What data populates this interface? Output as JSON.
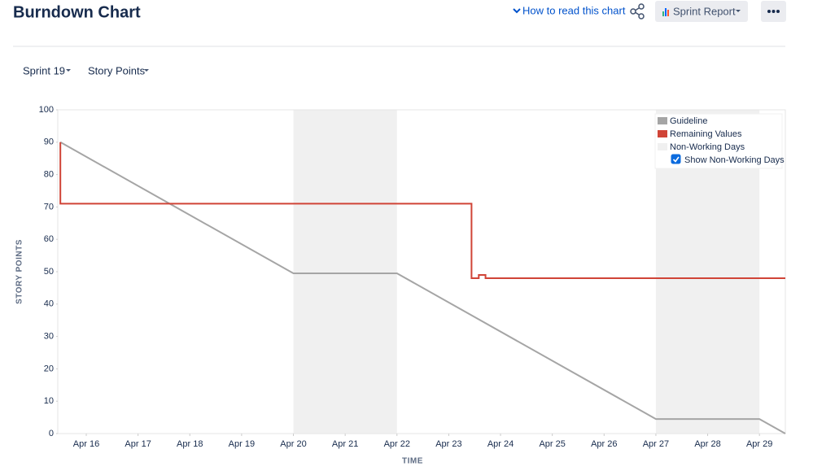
{
  "header": {
    "title": "Burndown Chart",
    "help_link": "How to read this chart",
    "report_button": "Sprint Report"
  },
  "filters": [
    "Sprint 19",
    "Story Points"
  ],
  "chart_data": {
    "type": "line",
    "x_label": "TIME",
    "y_label": "STORY POINTS",
    "xlim": [
      15.45,
      29.5
    ],
    "ylim": [
      0,
      100
    ],
    "xticks": [
      {
        "value": 16,
        "label": "Apr 16"
      },
      {
        "value": 17,
        "label": "Apr 17"
      },
      {
        "value": 18,
        "label": "Apr 18"
      },
      {
        "value": 19,
        "label": "Apr 19"
      },
      {
        "value": 20,
        "label": "Apr 20"
      },
      {
        "value": 21,
        "label": "Apr 21"
      },
      {
        "value": 22,
        "label": "Apr 22"
      },
      {
        "value": 23,
        "label": "Apr 23"
      },
      {
        "value": 24,
        "label": "Apr 24"
      },
      {
        "value": 25,
        "label": "Apr 25"
      },
      {
        "value": 26,
        "label": "Apr 26"
      },
      {
        "value": 27,
        "label": "Apr 27"
      },
      {
        "value": 28,
        "label": "Apr 28"
      },
      {
        "value": 29,
        "label": "Apr 29"
      }
    ],
    "yticks": [
      0,
      10,
      20,
      30,
      40,
      50,
      60,
      70,
      80,
      90,
      100
    ],
    "grid": false,
    "series": [
      {
        "name": "Guideline",
        "color": "#a5a5a5",
        "x": [
          15.5,
          20,
          22,
          27,
          29,
          29.5
        ],
        "values": [
          90,
          49.5,
          49.5,
          4.5,
          4.5,
          0
        ]
      },
      {
        "name": "Remaining Values",
        "color": "#d04437",
        "x": [
          15.5,
          15.5,
          23.44,
          23.44,
          23.58,
          23.58,
          23.71,
          23.71,
          29.5
        ],
        "values": [
          90,
          71,
          71,
          48,
          48,
          49,
          49,
          48,
          48
        ]
      }
    ],
    "non_working_days": {
      "name": "Non-Working Days",
      "color": "#f0f0f0",
      "ranges": [
        [
          20,
          22
        ],
        [
          27,
          29
        ]
      ]
    },
    "legend_position": "upper right",
    "checkbox": {
      "label": "Show Non-Working Days",
      "checked": true
    }
  }
}
